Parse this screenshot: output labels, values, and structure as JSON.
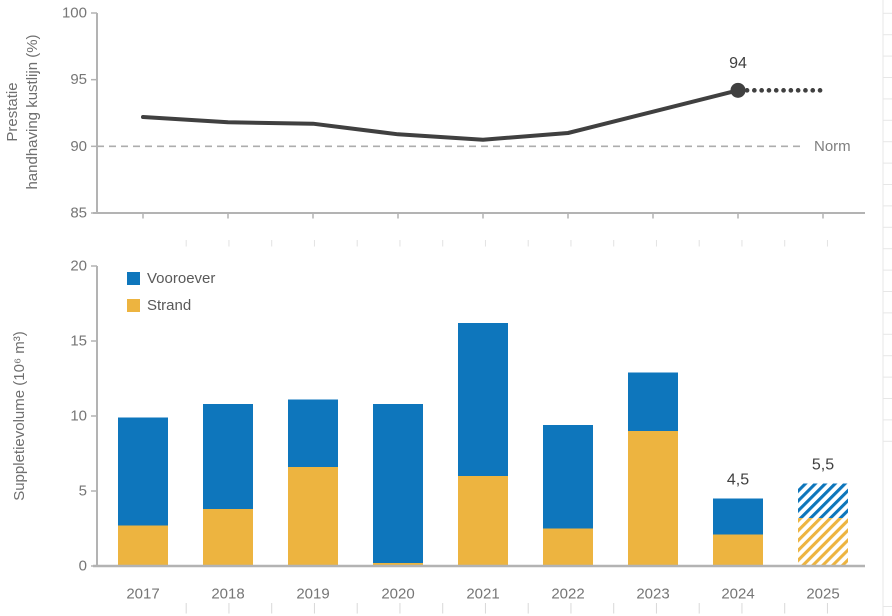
{
  "colors": {
    "vooroever_blue": "#0E76BC",
    "strand_yellow": "#EDB440",
    "line_dark": "#404040",
    "norm_dash": "#ADADAD",
    "axis_line": "#B3B3B3",
    "axis_text": "#767676",
    "title_text": "#6F6F6F",
    "legend_text": "#595959",
    "minor_tick": "#D8D8D8",
    "gap_tick": "#E2E2E2",
    "sheet_grid": "#E7E7E7"
  },
  "chart_data": [
    {
      "id": "prestatie",
      "type": "line",
      "ylabel_lines": [
        "Prestatie",
        "handhaving kustlijn (%)"
      ],
      "categories": [
        "2017",
        "2018",
        "2019",
        "2020",
        "2021",
        "2022",
        "2023",
        "2024",
        "2025"
      ],
      "series": [
        {
          "name": "Prestatie handhaving kustlijn",
          "values": [
            92.2,
            91.8,
            91.7,
            90.9,
            90.5,
            91.0,
            92.6,
            94.2
          ]
        }
      ],
      "projection": {
        "from": "2024",
        "to": "2025",
        "value": 94.2,
        "style": "dotted"
      },
      "point_label": {
        "category": "2024",
        "text": "94"
      },
      "norm_line": {
        "value": 90,
        "label": "Norm"
      },
      "ylim": [
        85,
        100
      ],
      "yticks": [
        100,
        95,
        90,
        85
      ],
      "grid": false,
      "legend_position": "none"
    },
    {
      "id": "suppletievolume",
      "type": "bar",
      "stacked": true,
      "ylabel": "Suppletievolume (10⁶ m³)",
      "categories": [
        "2017",
        "2018",
        "2019",
        "2020",
        "2021",
        "2022",
        "2023",
        "2024",
        "2025"
      ],
      "series": [
        {
          "name": "Strand",
          "color_key": "strand_yellow",
          "values": [
            2.7,
            3.8,
            6.6,
            0.2,
            6.0,
            2.5,
            9.0,
            2.1,
            3.2
          ]
        },
        {
          "name": "Vooroever",
          "color_key": "vooroever_blue",
          "values": [
            7.2,
            7.0,
            4.5,
            10.6,
            10.2,
            6.9,
            3.9,
            2.4,
            2.3
          ]
        }
      ],
      "hatched_categories": [
        "2025"
      ],
      "bar_labels": [
        {
          "category": "2024",
          "text": "4,5"
        },
        {
          "category": "2025",
          "text": "5,5"
        }
      ],
      "ylim": [
        0,
        20
      ],
      "yticks": [
        20,
        15,
        10,
        5,
        0
      ],
      "grid": false,
      "legend": [
        {
          "label": "Vooroever",
          "color_key": "vooroever_blue"
        },
        {
          "label": "Strand",
          "color_key": "strand_yellow"
        }
      ],
      "legend_position": "top-left-inside"
    }
  ]
}
